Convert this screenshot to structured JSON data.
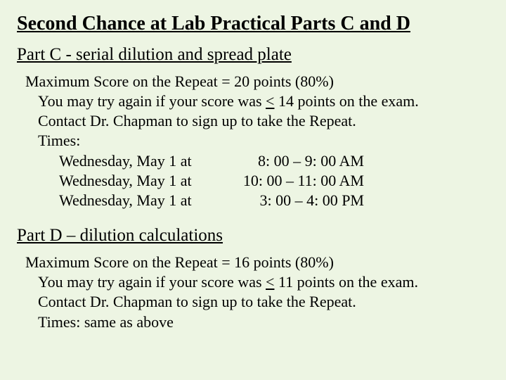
{
  "main_title": "Second Chance at Lab Practical Parts C and D",
  "partC": {
    "heading": "Part C - serial dilution and spread plate",
    "max_line_prefix": "Maximum Score on the Repeat = ",
    "max_line_value": "20 points (80%)",
    "eligibility_prefix": "You may try again if your score was ",
    "eligibility_symbol": "<",
    "eligibility_suffix": " 14 points on the exam.",
    "contact": "Contact Dr. Chapman to sign up to take the Repeat.",
    "times_label": "Times:",
    "times": [
      {
        "day": "Wednesday,  May 1 at",
        "time": "8: 00 – 9: 00 AM"
      },
      {
        "day": "Wednesday,  May 1 at",
        "time": "10: 00 – 11: 00 AM"
      },
      {
        "day": "Wednesday,  May 1 at",
        "time": "3: 00 – 4: 00 PM"
      }
    ]
  },
  "partD": {
    "heading": "Part D – dilution calculations",
    "max_line_prefix": "Maximum Score on the Repeat = ",
    "max_line_value": "16 points (80%)",
    "eligibility_prefix": "You may try again if your score was ",
    "eligibility_symbol": "<",
    "eligibility_suffix": " 11 points on the exam.",
    "contact": "Contact Dr. Chapman to sign up to take the Repeat.",
    "times_line": "Times:   same as above"
  }
}
